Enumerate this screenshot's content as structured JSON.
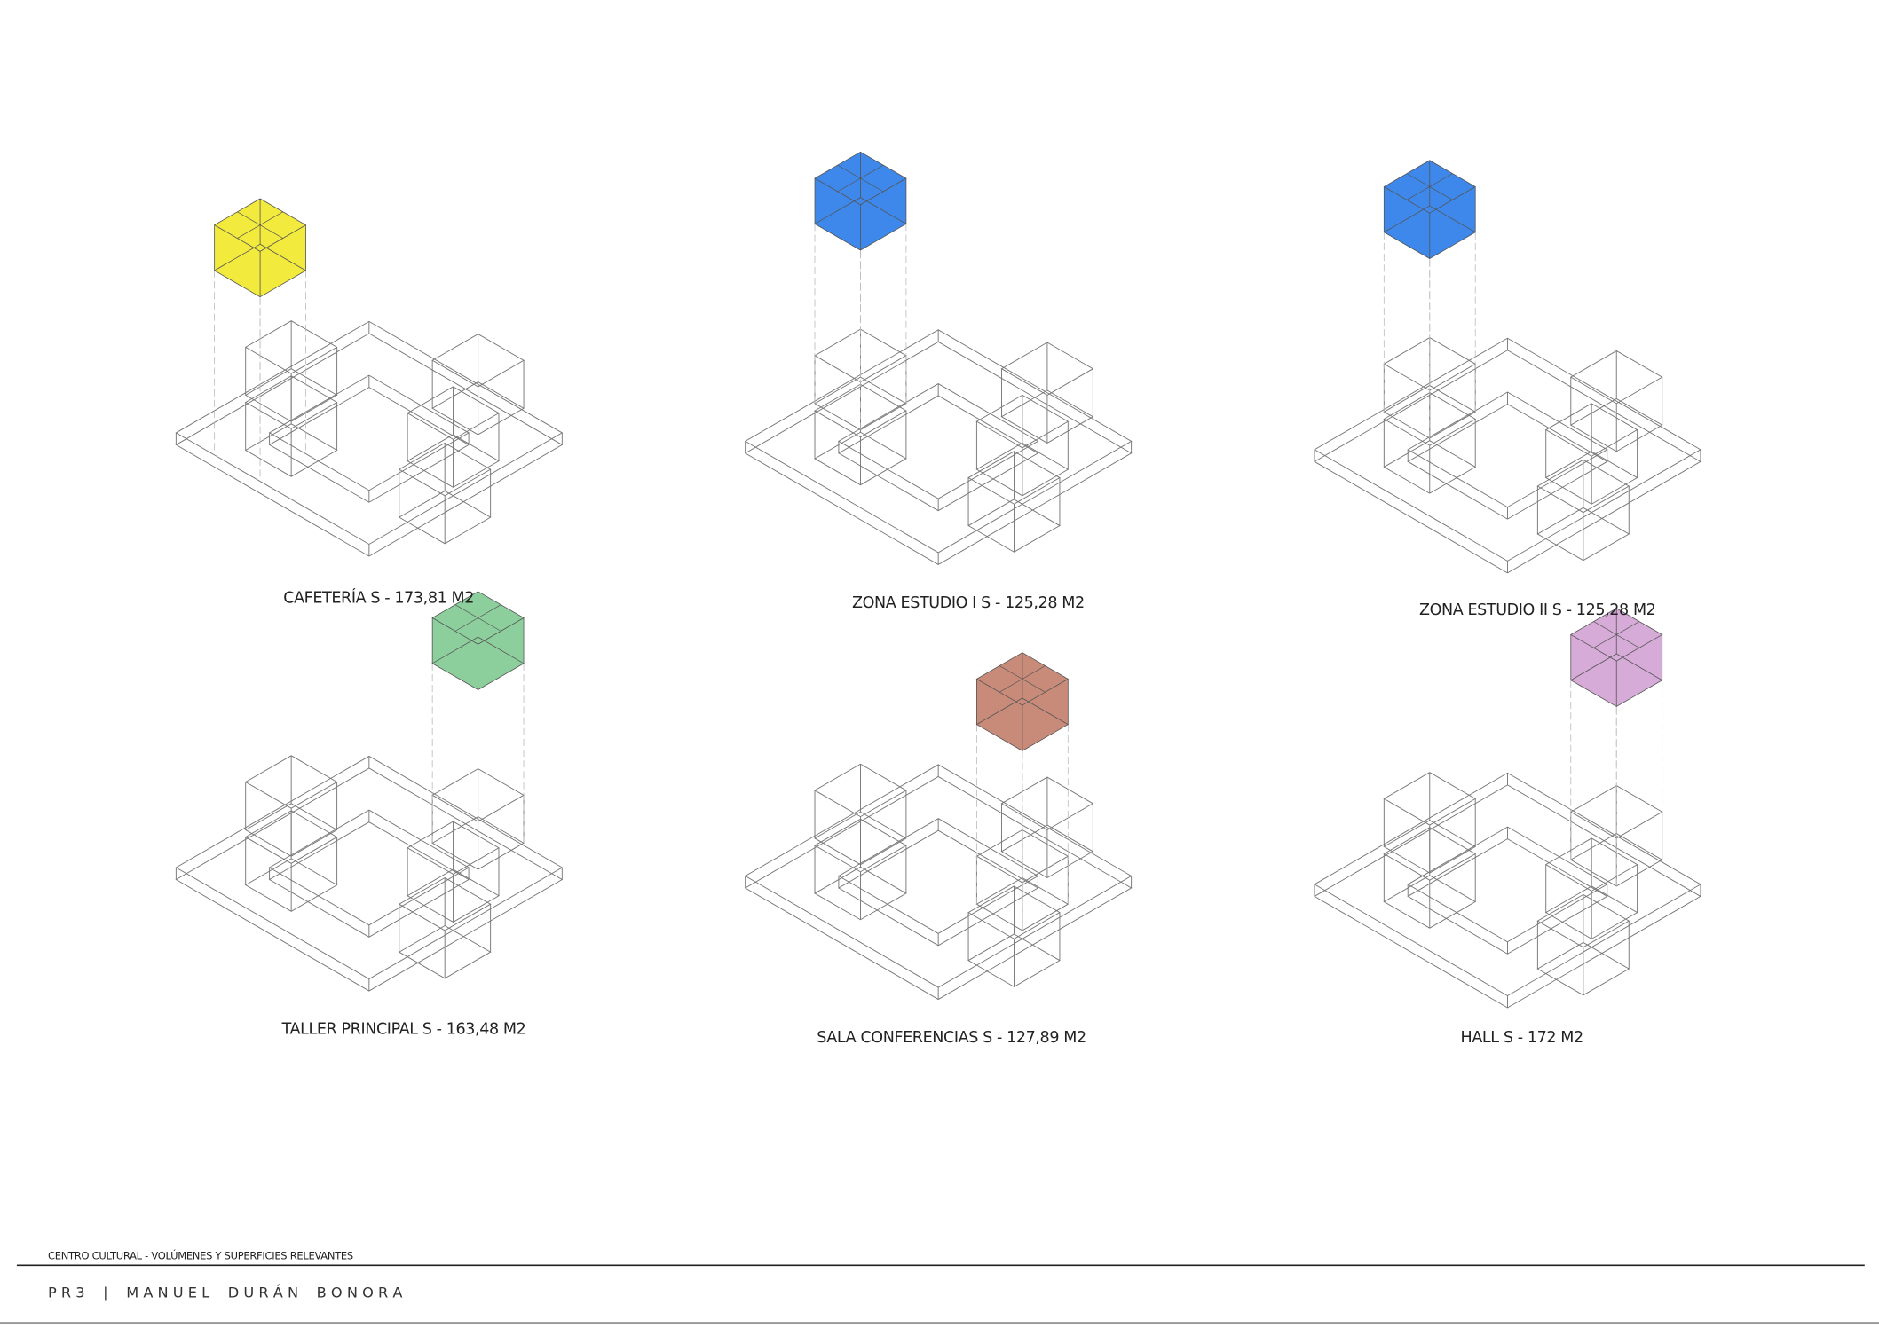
{
  "panels": [
    {
      "label": "CAFETERÍA  S - 173,81 M2",
      "color": "#f2ea3c"
    },
    {
      "label": "ZONA ESTUDIO I  S - 125,28 M2",
      "color": "#3d88ea"
    },
    {
      "label": "ZONA ESTUDIO II S - 125,28 M2",
      "color": "#3d88ea"
    },
    {
      "label": "TALLER PRINCIPAL  S - 163,48 M2",
      "color": "#8dcf9c"
    },
    {
      "label": "SALA CONFERENCIAS  S - 127,89 M2",
      "color": "#c98b79"
    },
    {
      "label": "HALL  S - 172 M2",
      "color": "#d6abd8"
    }
  ],
  "footer": {
    "title": "CENTRO CULTURAL -  VOLÚMENES Y SUPERFICIES RELEVANTES",
    "author": "P R 3    |    M A N U E L    D U R Á N    B O N O R A"
  }
}
